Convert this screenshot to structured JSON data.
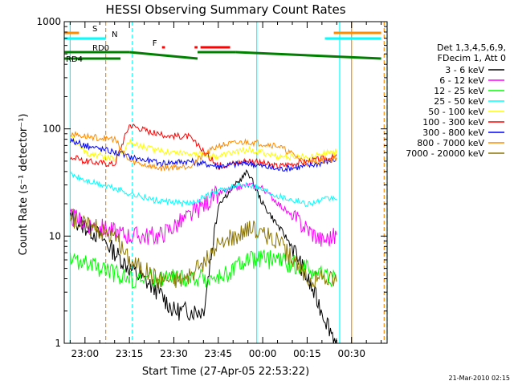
{
  "chart_data": {
    "type": "line",
    "title": "HESSI Observing Summary Count Rates",
    "xlabel": "Start Time (27-Apr-05 22:53:22)",
    "ylabel": "Count Rate (s⁻¹ detector⁻¹)",
    "x_ticks": [
      "23:00",
      "23:15",
      "23:30",
      "23:45",
      "00:00",
      "00:15",
      "00:30"
    ],
    "y_ticks": [
      "1",
      "10",
      "100",
      "1000"
    ],
    "y_scale": "log",
    "ylim": [
      1,
      1000
    ],
    "x_minutes": [
      -7,
      102
    ],
    "grid": false,
    "legend_position": "right",
    "timestamp": "21-Mar-2010 02:15",
    "legend_header": [
      "Det 1,3,4,5,6,9,",
      "FDecim 1, Att 0"
    ],
    "series": [
      {
        "name": "3 - 6 keV",
        "color": "#000000",
        "x": [
          -5,
          5,
          15,
          25,
          30,
          40,
          45,
          55,
          60,
          70,
          80,
          85
        ],
        "y": [
          15,
          10,
          5,
          3,
          2,
          2,
          20,
          40,
          20,
          8,
          2,
          1
        ]
      },
      {
        "name": "6 - 12 keV",
        "color": "#ff00ff",
        "x": [
          -5,
          5,
          15,
          25,
          35,
          45,
          55,
          60,
          70,
          80,
          85
        ],
        "y": [
          15,
          12,
          10,
          10,
          15,
          25,
          30,
          28,
          15,
          9,
          10
        ]
      },
      {
        "name": "12 - 25 keV",
        "color": "#00ff00",
        "x": [
          -5,
          5,
          15,
          25,
          35,
          45,
          55,
          65,
          75,
          85
        ],
        "y": [
          6,
          5,
          4,
          4,
          4,
          4,
          6,
          6,
          5,
          4
        ]
      },
      {
        "name": "25 - 50 keV",
        "color": "#00ffff",
        "x": [
          -5,
          0,
          10,
          15,
          25,
          35,
          45,
          55,
          65,
          75,
          85
        ],
        "y": [
          38,
          33,
          28,
          25,
          21,
          20,
          26,
          31,
          24,
          20,
          23
        ]
      },
      {
        "name": "50 - 100 keV",
        "color": "#ffff00",
        "x": [
          -5,
          0,
          10,
          15,
          25,
          35,
          45,
          55,
          65,
          75,
          85
        ],
        "y": [
          85,
          60,
          52,
          75,
          62,
          60,
          55,
          65,
          55,
          55,
          62
        ]
      },
      {
        "name": "100 - 300 keV",
        "color": "#ff0000",
        "x": [
          -5,
          0,
          10,
          15,
          25,
          35,
          45,
          55,
          65,
          75,
          85
        ],
        "y": [
          55,
          50,
          47,
          110,
          88,
          85,
          45,
          51,
          45,
          50,
          55
        ]
      },
      {
        "name": "300 - 800 keV",
        "color": "#0000ff",
        "x": [
          -5,
          0,
          10,
          15,
          25,
          35,
          45,
          55,
          65,
          75,
          85
        ],
        "y": [
          78,
          70,
          61,
          55,
          48,
          50,
          45,
          48,
          42,
          45,
          52
        ]
      },
      {
        "name": "800 - 7000 keV",
        "color": "#ff8c00",
        "x": [
          -5,
          0,
          10,
          15,
          25,
          35,
          45,
          55,
          65,
          75,
          85
        ],
        "y": [
          90,
          85,
          80,
          50,
          43,
          45,
          70,
          76,
          70,
          48,
          54
        ]
      },
      {
        "name": "7000 - 20000 keV",
        "color": "#8b7500",
        "x": [
          -5,
          0,
          10,
          15,
          25,
          35,
          45,
          55,
          65,
          75,
          85
        ],
        "y": [
          15,
          13,
          10,
          6,
          4,
          4,
          8,
          12,
          9,
          4,
          4
        ]
      }
    ],
    "status_bars": [
      {
        "label": "S",
        "color": "#ff8c00",
        "segments": [
          [
            -7,
            -2
          ],
          [
            84,
            100
          ]
        ]
      },
      {
        "label": "N",
        "color": "#00ffff",
        "segments": [
          [
            -7,
            7
          ],
          [
            81,
            100
          ]
        ]
      },
      {
        "label": "F",
        "color": "#ff0000",
        "segments": [
          [
            26,
            27
          ],
          [
            37,
            38
          ],
          [
            39,
            49
          ]
        ]
      },
      {
        "label": "RD0",
        "color": "#008000",
        "segments": [
          [
            -7,
            15
          ],
          [
            15,
            38
          ],
          [
            38,
            51
          ],
          [
            51,
            100
          ]
        ]
      },
      {
        "label": "RD4",
        "color": "#008000",
        "segments": [
          [
            -7,
            12
          ]
        ]
      }
    ],
    "vertical_markers": [
      {
        "minute": -5,
        "color": "#00ffff",
        "style": "solid"
      },
      {
        "minute": 7,
        "color": "#ff8c00",
        "style": "dashed"
      },
      {
        "minute": 16,
        "color": "#00ffff",
        "style": "dashed"
      },
      {
        "minute": 58,
        "color": "#00ffff",
        "style": "solid"
      },
      {
        "minute": 86,
        "color": "#00ffff",
        "style": "solid"
      },
      {
        "minute": 90,
        "color": "#ff8c00",
        "style": "solid"
      },
      {
        "minute": 101,
        "color": "#ff8c00",
        "style": "dashed"
      },
      {
        "minute": 102,
        "color": "#00ffff",
        "style": "dashed"
      }
    ]
  }
}
